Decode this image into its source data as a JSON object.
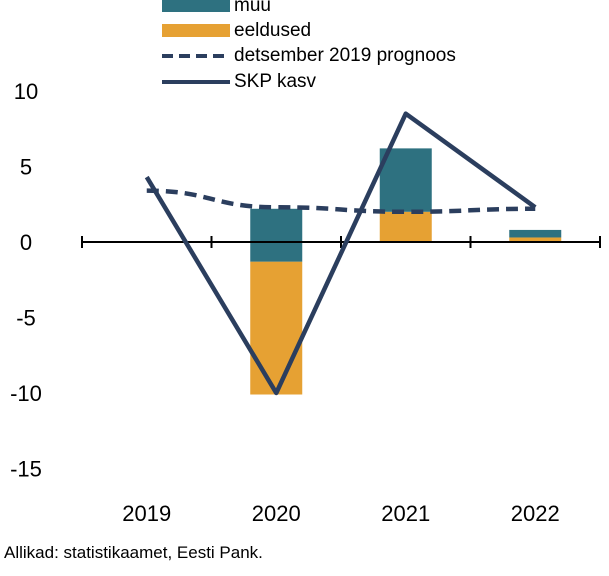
{
  "chart_data": {
    "type": "bar",
    "categories": [
      "2019",
      "2020",
      "2021",
      "2022"
    ],
    "ylim": [
      -15,
      10
    ],
    "yticks": [
      10,
      5,
      0,
      -5,
      -10,
      -15
    ],
    "grid": false,
    "legend_position": "top",
    "series": [
      {
        "name": "muu",
        "kind": "stacked-bar",
        "color": "#2e7180",
        "values": [
          null,
          2.2,
          4.2,
          0.5
        ]
      },
      {
        "name": "eeldused",
        "kind": "stacked-bar",
        "color": "#e6a133",
        "values": [
          null,
          -8.8,
          2.0,
          0.3
        ]
      },
      {
        "name": "muu",
        "kind": "stacked-bar-negative",
        "color": "#2e7180",
        "values": [
          null,
          -1.3,
          null,
          null
        ]
      },
      {
        "name": "detsember 2019 prognoos",
        "kind": "dashed-line",
        "color": "#2b3e5e",
        "values": [
          3.4,
          2.3,
          2.0,
          2.2
        ]
      },
      {
        "name": "SKP kasv",
        "kind": "line",
        "color": "#2b3e5e",
        "values": [
          4.3,
          -10.0,
          8.5,
          2.3
        ]
      }
    ],
    "legend": [
      {
        "label": "muu",
        "kind": "box",
        "color": "#2e7180"
      },
      {
        "label": "eeldused",
        "kind": "box",
        "color": "#e6a133"
      },
      {
        "label": "detsember 2019 prognoos",
        "kind": "dashed",
        "color": "#2b3e5e"
      },
      {
        "label": "SKP kasv",
        "kind": "solid",
        "color": "#2b3e5e"
      }
    ]
  },
  "source_note": "Allikad: statistikaamet, Eesti Pank."
}
